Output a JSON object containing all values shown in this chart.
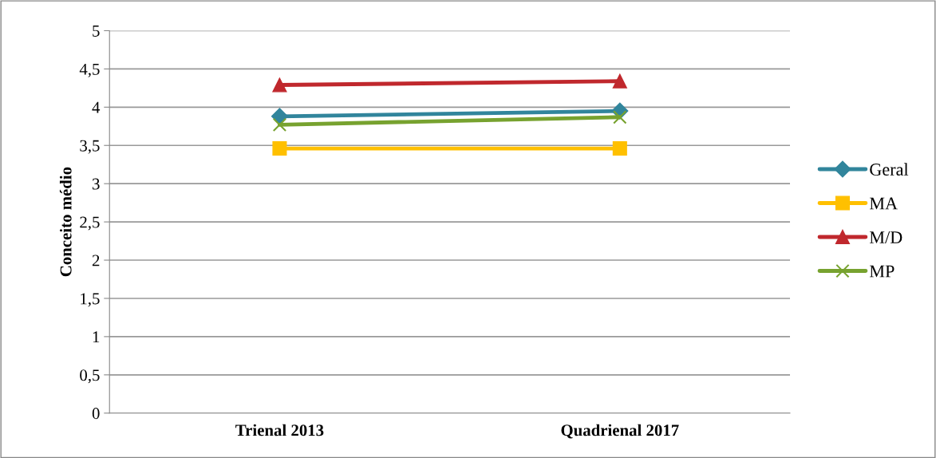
{
  "chart_data": {
    "type": "line",
    "ylabel": "Conceito médio",
    "categories": [
      "Trienal 2013",
      "Quadrienal 2017"
    ],
    "series": [
      {
        "name": "Geral",
        "color": "#31859c",
        "marker": "diamond",
        "values": [
          3.88,
          3.95
        ]
      },
      {
        "name": "MA",
        "color": "#ffc000",
        "marker": "square",
        "values": [
          3.46,
          3.46
        ]
      },
      {
        "name": "M/D",
        "color": "#c0282d",
        "marker": "triangle",
        "values": [
          4.29,
          4.34
        ]
      },
      {
        "name": "MP",
        "color": "#77a22f",
        "marker": "cross",
        "values": [
          3.77,
          3.87
        ]
      }
    ],
    "ylim": [
      0,
      5
    ],
    "yticks": [
      0,
      {
        "value": 0.5,
        "label": "0,5"
      },
      1,
      {
        "value": 1.5,
        "label": "1,5"
      },
      2,
      {
        "value": 2.5,
        "label": "2,5"
      },
      3,
      {
        "value": 3.5,
        "label": "3,5"
      },
      4,
      {
        "value": 4.5,
        "label": "4,5"
      },
      5
    ],
    "grid": "y",
    "legend": "right",
    "line_style": "solid"
  }
}
